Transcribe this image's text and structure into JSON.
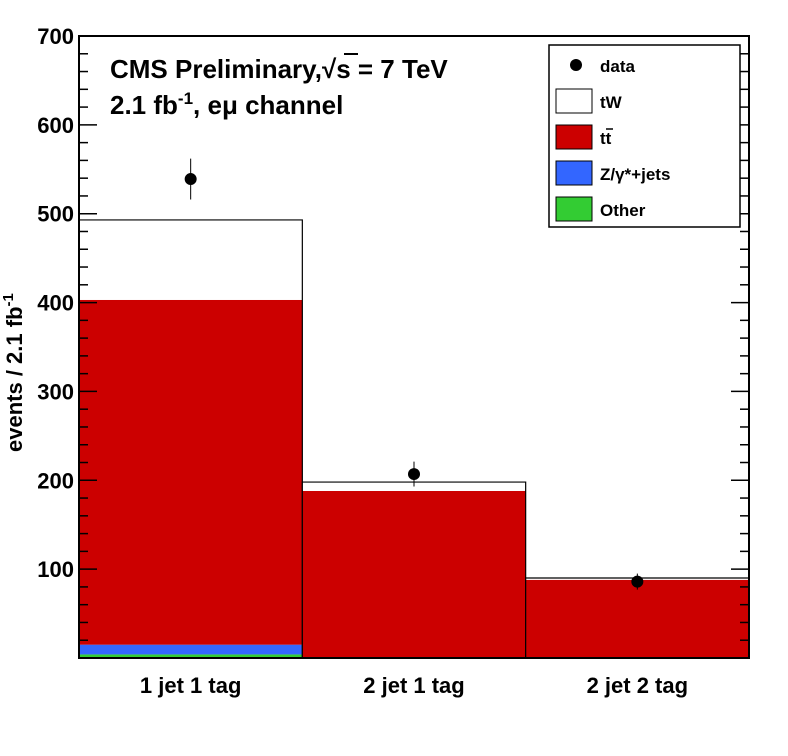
{
  "chart_data": {
    "type": "bar",
    "stacked": true,
    "categories": [
      "1 jet 1 tag",
      "2 jet 1 tag",
      "2 jet 2 tag"
    ],
    "ylabel_main": "events / 2.1 fb",
    "ylabel_sup": "-1",
    "ylim": [
      0,
      700
    ],
    "yticks": [
      100,
      200,
      300,
      400,
      500,
      600,
      700
    ],
    "annotation": {
      "line1": "CMS Preliminary,",
      "sqrt": "√",
      "line1b": "s = 7 TeV",
      "line2a": "2.1 fb",
      "line2sup": "-1",
      "line2b": ", eμ channel"
    },
    "series": [
      {
        "name": "Other",
        "color": "#33cc33",
        "values": [
          4,
          0,
          0
        ]
      },
      {
        "name": "Z/γ*+jets",
        "color": "#3366ff",
        "values": [
          11,
          0,
          0
        ]
      },
      {
        "name": "tt̄",
        "color": "#cc0000",
        "values": [
          388,
          188,
          88
        ]
      },
      {
        "name": "tW",
        "color": "#ffffff",
        "values": [
          90,
          10,
          2
        ]
      }
    ],
    "data": {
      "name": "data",
      "values": [
        539,
        207,
        86
      ],
      "errors": [
        23,
        14,
        9
      ]
    },
    "legend": {
      "placement": "top-right",
      "entries": [
        {
          "label": "data",
          "kind": "marker"
        },
        {
          "label": "tW",
          "kind": "fill",
          "color": "#ffffff"
        },
        {
          "label_main": "tt",
          "label_bar": "t",
          "kind": "fill",
          "color": "#cc0000"
        },
        {
          "label": "Z/γ*+jets",
          "kind": "fill",
          "color": "#3366ff"
        },
        {
          "label": "Other",
          "kind": "fill",
          "color": "#33cc33"
        }
      ]
    }
  }
}
